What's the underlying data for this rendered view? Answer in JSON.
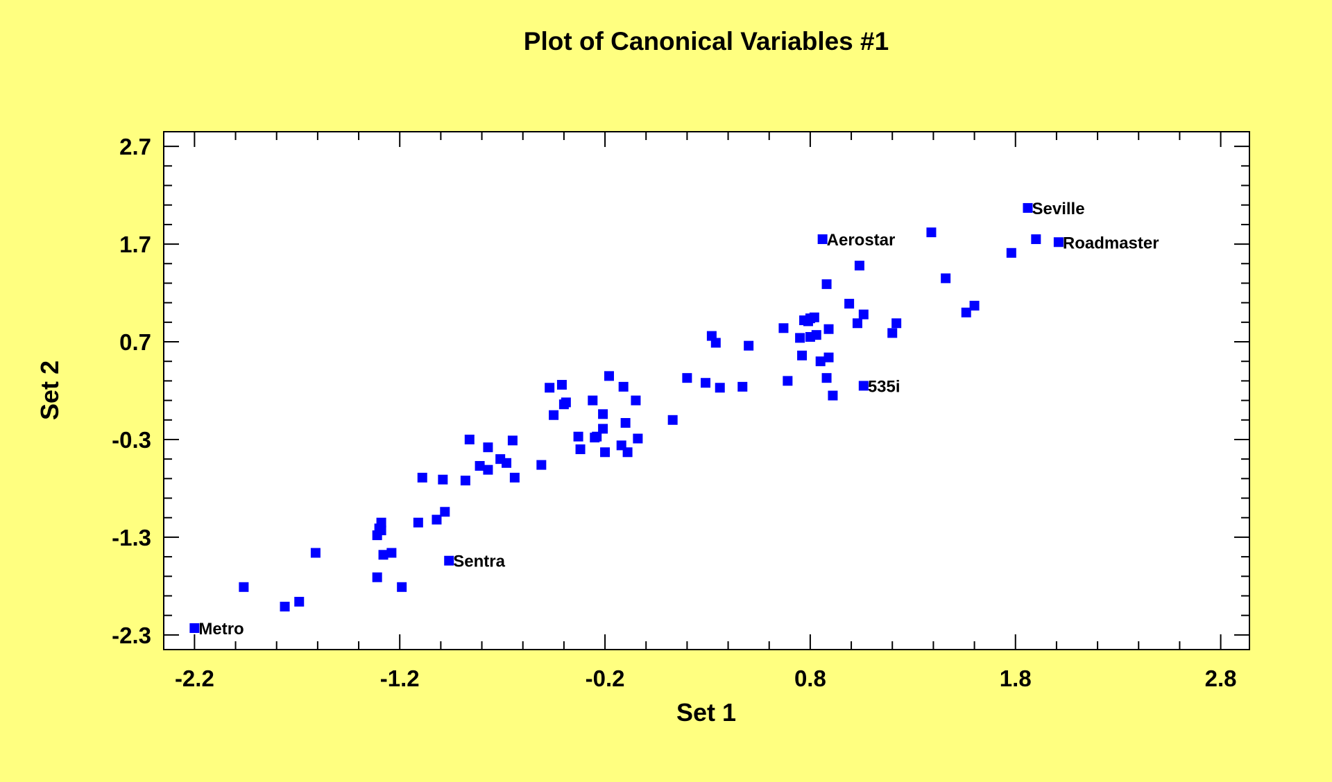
{
  "chart_data": {
    "type": "scatter",
    "title": "Plot of Canonical Variables #1",
    "xlabel": "Set 1",
    "ylabel": "Set 2",
    "xlim": [
      -2.35,
      2.94
    ],
    "ylim": [
      -2.45,
      2.85
    ],
    "xticks": [
      -2.2,
      -1.2,
      -0.2,
      0.8,
      1.8,
      2.8
    ],
    "xtick_labels": [
      "-2.2",
      "-1.2",
      "-0.2",
      "0.8",
      "1.8",
      "2.8"
    ],
    "yticks": [
      2.7,
      1.7,
      0.7,
      -0.3,
      -1.3,
      -2.3
    ],
    "ytick_labels": [
      "2.7",
      "1.7",
      "0.7",
      "-0.3",
      "-1.3",
      "-2.3"
    ],
    "minor_tick_step": 0.2,
    "grid": false,
    "colors": {
      "background": "#ffff80",
      "plot_area": "#ffffff",
      "marker": "#0000ff",
      "text": "#000000"
    },
    "marker": "square",
    "points": [
      {
        "x": -2.2,
        "y": -2.23,
        "label": "Metro"
      },
      {
        "x": -1.96,
        "y": -1.81
      },
      {
        "x": -1.76,
        "y": -2.01
      },
      {
        "x": -1.69,
        "y": -1.96
      },
      {
        "x": -1.61,
        "y": -1.46
      },
      {
        "x": -1.31,
        "y": -1.71
      },
      {
        "x": -1.31,
        "y": -1.28
      },
      {
        "x": -1.3,
        "y": -1.21
      },
      {
        "x": -1.29,
        "y": -1.15
      },
      {
        "x": -1.29,
        "y": -1.23
      },
      {
        "x": -1.28,
        "y": -1.48
      },
      {
        "x": -1.24,
        "y": -1.46
      },
      {
        "x": -1.19,
        "y": -1.81
      },
      {
        "x": -1.11,
        "y": -1.15
      },
      {
        "x": -1.02,
        "y": -1.12
      },
      {
        "x": -0.98,
        "y": -1.04
      },
      {
        "x": -0.96,
        "y": -1.54,
        "label": "Sentra"
      },
      {
        "x": -1.09,
        "y": -0.69
      },
      {
        "x": -0.99,
        "y": -0.71
      },
      {
        "x": -0.88,
        "y": -0.72
      },
      {
        "x": -0.86,
        "y": -0.3
      },
      {
        "x": -0.81,
        "y": -0.57
      },
      {
        "x": -0.77,
        "y": -0.61
      },
      {
        "x": -0.77,
        "y": -0.38
      },
      {
        "x": -0.71,
        "y": -0.5
      },
      {
        "x": -0.68,
        "y": -0.54
      },
      {
        "x": -0.65,
        "y": -0.31
      },
      {
        "x": -0.64,
        "y": -0.69
      },
      {
        "x": -0.51,
        "y": -0.56
      },
      {
        "x": -0.47,
        "y": 0.23
      },
      {
        "x": -0.45,
        "y": -0.05
      },
      {
        "x": -0.41,
        "y": 0.26
      },
      {
        "x": -0.4,
        "y": 0.06
      },
      {
        "x": -0.39,
        "y": 0.08
      },
      {
        "x": -0.33,
        "y": -0.27
      },
      {
        "x": -0.32,
        "y": -0.4
      },
      {
        "x": -0.26,
        "y": 0.1
      },
      {
        "x": -0.25,
        "y": -0.28
      },
      {
        "x": -0.24,
        "y": -0.27
      },
      {
        "x": -0.21,
        "y": -0.04
      },
      {
        "x": -0.21,
        "y": -0.19
      },
      {
        "x": -0.2,
        "y": -0.43
      },
      {
        "x": -0.18,
        "y": 0.35
      },
      {
        "x": -0.11,
        "y": 0.24
      },
      {
        "x": -0.12,
        "y": -0.36
      },
      {
        "x": -0.1,
        "y": -0.13
      },
      {
        "x": -0.09,
        "y": -0.43
      },
      {
        "x": -0.05,
        "y": 0.1
      },
      {
        "x": -0.04,
        "y": -0.29
      },
      {
        "x": 0.13,
        "y": -0.1
      },
      {
        "x": 0.2,
        "y": 0.33
      },
      {
        "x": 0.29,
        "y": 0.28
      },
      {
        "x": 0.32,
        "y": 0.76
      },
      {
        "x": 0.34,
        "y": 0.69
      },
      {
        "x": 0.36,
        "y": 0.23
      },
      {
        "x": 0.47,
        "y": 0.24
      },
      {
        "x": 0.5,
        "y": 0.66
      },
      {
        "x": 0.67,
        "y": 0.84
      },
      {
        "x": 0.69,
        "y": 0.3
      },
      {
        "x": 0.75,
        "y": 0.74
      },
      {
        "x": 0.76,
        "y": 0.56
      },
      {
        "x": 0.77,
        "y": 0.92
      },
      {
        "x": 0.79,
        "y": 0.91
      },
      {
        "x": 0.8,
        "y": 0.94
      },
      {
        "x": 0.82,
        "y": 0.95
      },
      {
        "x": 0.8,
        "y": 0.75
      },
      {
        "x": 0.83,
        "y": 0.77
      },
      {
        "x": 0.85,
        "y": 0.5
      },
      {
        "x": 0.88,
        "y": 0.33
      },
      {
        "x": 0.89,
        "y": 0.54
      },
      {
        "x": 0.89,
        "y": 0.83
      },
      {
        "x": 0.88,
        "y": 1.29
      },
      {
        "x": 0.86,
        "y": 1.75,
        "label": "Aerostar"
      },
      {
        "x": 0.91,
        "y": 0.15
      },
      {
        "x": 0.99,
        "y": 1.09
      },
      {
        "x": 1.03,
        "y": 0.89
      },
      {
        "x": 1.04,
        "y": 1.48
      },
      {
        "x": 1.06,
        "y": 0.98
      },
      {
        "x": 1.06,
        "y": 0.25,
        "label": "535i"
      },
      {
        "x": 1.2,
        "y": 0.79
      },
      {
        "x": 1.22,
        "y": 0.89
      },
      {
        "x": 1.39,
        "y": 1.82
      },
      {
        "x": 1.46,
        "y": 1.35
      },
      {
        "x": 1.56,
        "y": 1.0
      },
      {
        "x": 1.6,
        "y": 1.07
      },
      {
        "x": 1.78,
        "y": 1.61
      },
      {
        "x": 1.86,
        "y": 2.07,
        "label": "Seville"
      },
      {
        "x": 1.9,
        "y": 1.75
      },
      {
        "x": 2.01,
        "y": 1.72,
        "label": "Roadmaster"
      }
    ]
  }
}
